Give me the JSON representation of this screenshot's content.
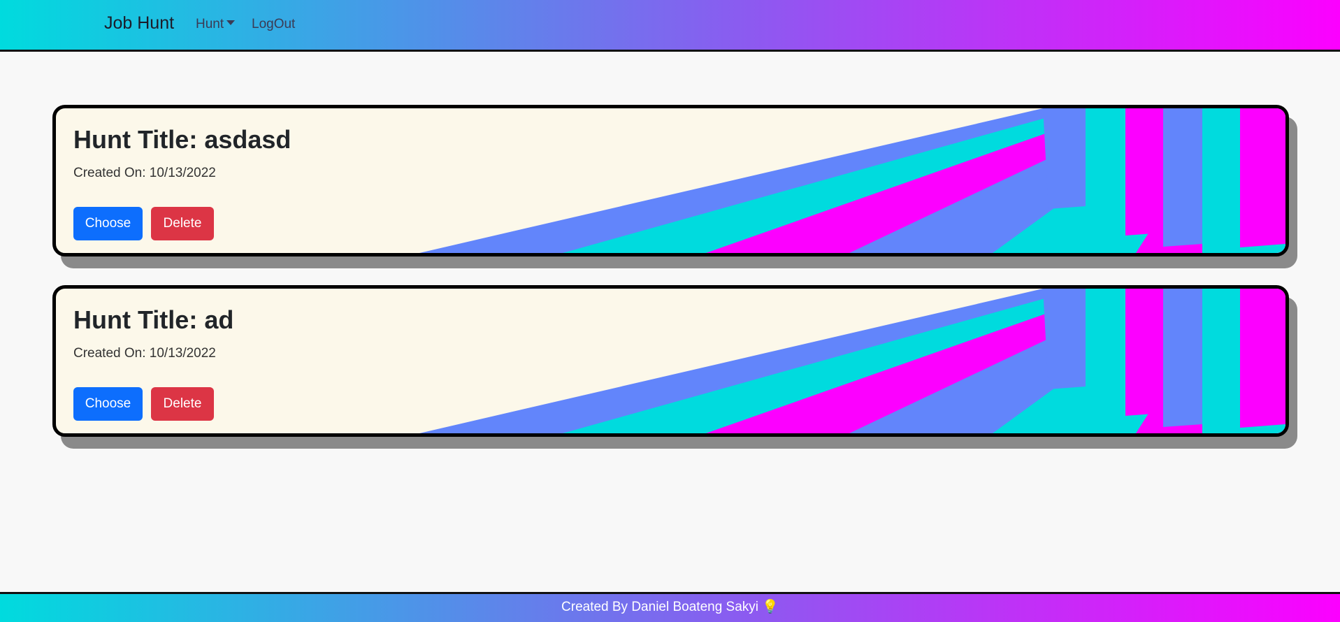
{
  "navbar": {
    "brand": "Job Hunt",
    "items": [
      {
        "label": "Hunt"
      },
      {
        "label": "LogOut"
      }
    ]
  },
  "hunts": [
    {
      "title": "Hunt Title: asdasd",
      "created": "Created On: 10/13/2022",
      "choose_label": "Choose",
      "delete_label": "Delete"
    },
    {
      "title": "Hunt Title: ad",
      "created": "Created On: 10/13/2022",
      "choose_label": "Choose",
      "delete_label": "Delete"
    }
  ],
  "footer": {
    "text": "Created By Daniel Boateng Sakyi",
    "icon": "💡"
  },
  "colors": {
    "primary": "#0d6efd",
    "danger": "#dc3545",
    "cyan": "#00dbde",
    "magenta": "#fc00ff",
    "periwinkle": "#6285fb",
    "card_bg": "#fcf8ea"
  }
}
